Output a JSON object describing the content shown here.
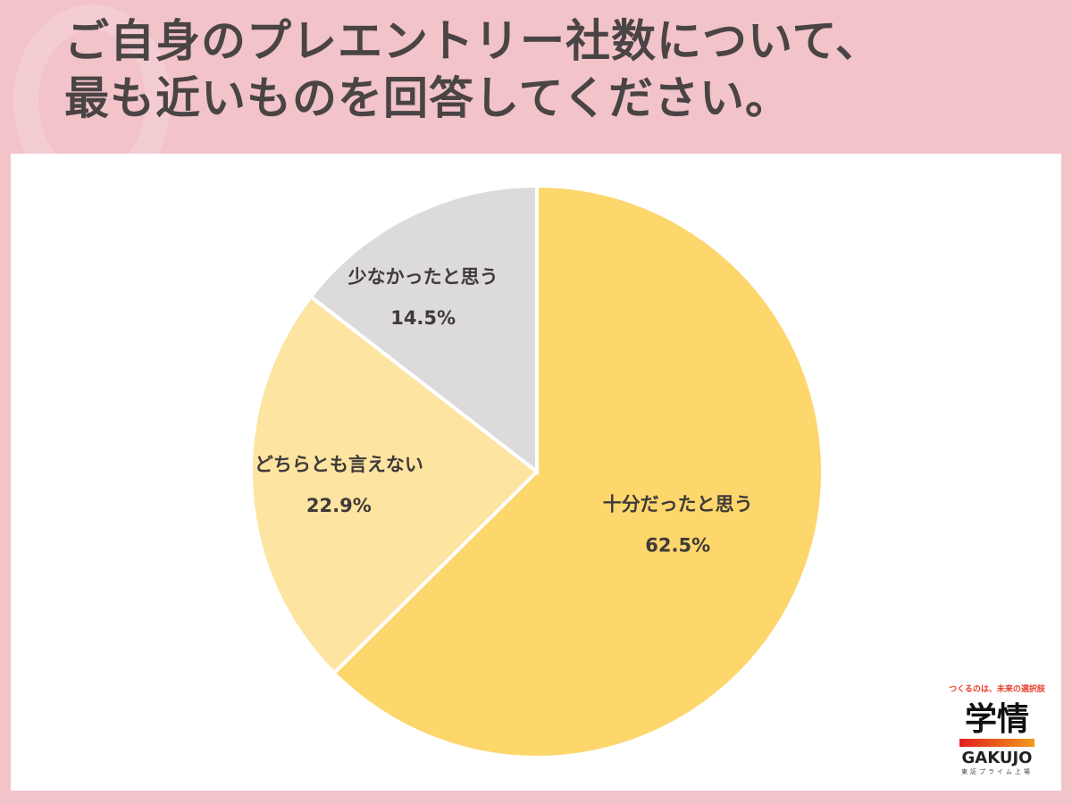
{
  "title_lines": [
    "ご自身のプレエントリー社数について、",
    "最も近いものを回答してください。"
  ],
  "chart_data": {
    "type": "pie",
    "title": "ご自身のプレエントリー社数について、最も近いものを回答してください。",
    "start": "12 o'clock, clockwise",
    "slices": [
      {
        "label": "十分だったと思う",
        "value": 62.5,
        "value_label": "62.5%",
        "color": "#FDD66C"
      },
      {
        "label": "どちらとも言えない",
        "value": 22.9,
        "value_label": "22.9%",
        "color": "#FDE4A0"
      },
      {
        "label": "少なかったと思う",
        "value": 14.5,
        "value_label": "14.5%",
        "color": "#DCDADB"
      }
    ]
  },
  "logo": {
    "tagline": "つくるのは、未来の選択肢",
    "mark": "学情",
    "name": "GAKUJO",
    "sub": "東証プライム上場"
  }
}
